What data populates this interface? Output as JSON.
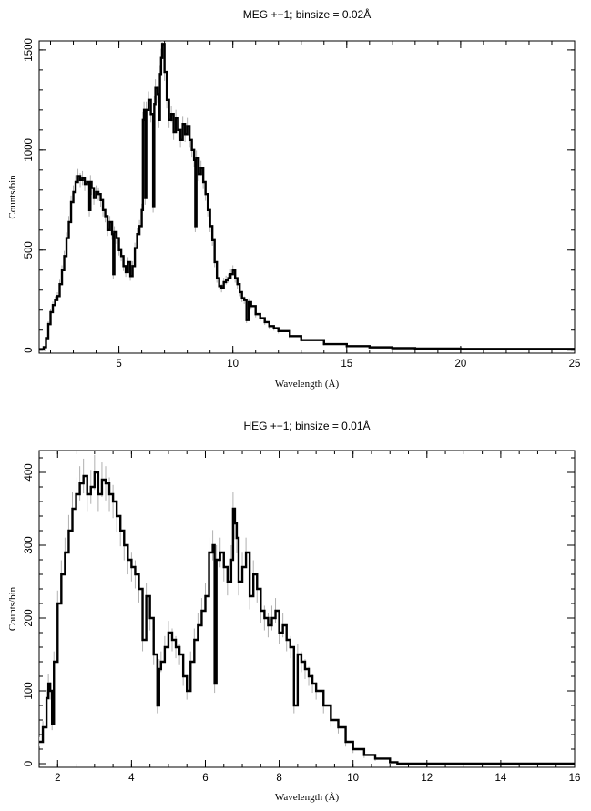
{
  "chart_data": [
    {
      "type": "line",
      "title": "MEG +−1; binsize = 0.02Å",
      "xlabel": "Wavelength (Å)",
      "ylabel": "Counts/bin",
      "xlim": [
        1.5,
        25
      ],
      "ylim": [
        -15,
        1545
      ],
      "xticks": [
        5,
        10,
        15,
        20,
        25
      ],
      "yticks": [
        0,
        500,
        1000,
        1500
      ],
      "grid": false,
      "series": [
        {
          "points": [
            [
              1.5,
              5
            ],
            [
              1.7,
              15
            ],
            [
              1.8,
              60
            ],
            [
              1.9,
              130
            ],
            [
              2.0,
              190
            ],
            [
              2.1,
              225
            ],
            [
              2.2,
              250
            ],
            [
              2.3,
              270
            ],
            [
              2.4,
              330
            ],
            [
              2.5,
              400
            ],
            [
              2.6,
              470
            ],
            [
              2.7,
              560
            ],
            [
              2.8,
              640
            ],
            [
              2.9,
              740
            ],
            [
              3.0,
              790
            ],
            [
              3.1,
              840
            ],
            [
              3.2,
              870
            ],
            [
              3.3,
              850
            ],
            [
              3.4,
              860
            ],
            [
              3.5,
              830
            ],
            [
              3.6,
              840
            ],
            [
              3.7,
              700
            ],
            [
              3.75,
              840
            ],
            [
              3.8,
              810
            ],
            [
              3.9,
              760
            ],
            [
              4.0,
              790
            ],
            [
              4.1,
              780
            ],
            [
              4.2,
              750
            ],
            [
              4.3,
              700
            ],
            [
              4.4,
              670
            ],
            [
              4.5,
              600
            ],
            [
              4.6,
              640
            ],
            [
              4.7,
              580
            ],
            [
              4.75,
              380
            ],
            [
              4.8,
              590
            ],
            [
              4.9,
              560
            ],
            [
              5.0,
              500
            ],
            [
              5.1,
              470
            ],
            [
              5.2,
              420
            ],
            [
              5.3,
              390
            ],
            [
              5.4,
              440
            ],
            [
              5.5,
              370
            ],
            [
              5.6,
              420
            ],
            [
              5.7,
              510
            ],
            [
              5.8,
              580
            ],
            [
              5.9,
              620
            ],
            [
              6.0,
              700
            ],
            [
              6.05,
              1150
            ],
            [
              6.1,
              1200
            ],
            [
              6.15,
              760
            ],
            [
              6.2,
              1200
            ],
            [
              6.3,
              1250
            ],
            [
              6.4,
              1180
            ],
            [
              6.5,
              720
            ],
            [
              6.55,
              1230
            ],
            [
              6.6,
              1310
            ],
            [
              6.7,
              1280
            ],
            [
              6.75,
              1150
            ],
            [
              6.8,
              1380
            ],
            [
              6.85,
              1460
            ],
            [
              6.9,
              1530
            ],
            [
              7.0,
              1390
            ],
            [
              7.1,
              1250
            ],
            [
              7.2,
              1150
            ],
            [
              7.3,
              1180
            ],
            [
              7.4,
              1090
            ],
            [
              7.5,
              1160
            ],
            [
              7.6,
              1100
            ],
            [
              7.7,
              1050
            ],
            [
              7.8,
              1130
            ],
            [
              7.9,
              1080
            ],
            [
              8.0,
              1120
            ],
            [
              8.1,
              1050
            ],
            [
              8.2,
              1000
            ],
            [
              8.3,
              950
            ],
            [
              8.35,
              620
            ],
            [
              8.4,
              960
            ],
            [
              8.5,
              880
            ],
            [
              8.6,
              910
            ],
            [
              8.7,
              840
            ],
            [
              8.8,
              780
            ],
            [
              8.9,
              700
            ],
            [
              9.0,
              620
            ],
            [
              9.1,
              550
            ],
            [
              9.2,
              440
            ],
            [
              9.3,
              360
            ],
            [
              9.4,
              320
            ],
            [
              9.5,
              310
            ],
            [
              9.6,
              340
            ],
            [
              9.7,
              350
            ],
            [
              9.8,
              360
            ],
            [
              9.9,
              380
            ],
            [
              10.0,
              400
            ],
            [
              10.1,
              360
            ],
            [
              10.2,
              330
            ],
            [
              10.3,
              290
            ],
            [
              10.4,
              260
            ],
            [
              10.5,
              250
            ],
            [
              10.6,
              150
            ],
            [
              10.7,
              240
            ],
            [
              10.8,
              220
            ],
            [
              11.0,
              180
            ],
            [
              11.2,
              160
            ],
            [
              11.4,
              140
            ],
            [
              11.6,
              120
            ],
            [
              11.8,
              110
            ],
            [
              12.0,
              95
            ],
            [
              12.5,
              70
            ],
            [
              13.0,
              50
            ],
            [
              14.0,
              30
            ],
            [
              15.0,
              20
            ],
            [
              16.0,
              14
            ],
            [
              17.0,
              10
            ],
            [
              18.0,
              8
            ],
            [
              20.0,
              6
            ],
            [
              25.0,
              5
            ]
          ]
        }
      ]
    },
    {
      "type": "line",
      "title": "HEG +−1; binsize = 0.01Å",
      "xlabel": "Wavelength (Å)",
      "ylabel": "Counts/bin",
      "xlim": [
        1.5,
        16
      ],
      "ylim": [
        -5,
        430
      ],
      "xticks": [
        2,
        4,
        6,
        8,
        10,
        12,
        14,
        16
      ],
      "yticks": [
        0,
        100,
        200,
        300,
        400
      ],
      "grid": false,
      "series": [
        {
          "points": [
            [
              1.5,
              30
            ],
            [
              1.6,
              50
            ],
            [
              1.7,
              90
            ],
            [
              1.75,
              110
            ],
            [
              1.8,
              100
            ],
            [
              1.85,
              55
            ],
            [
              1.9,
              140
            ],
            [
              2.0,
              220
            ],
            [
              2.1,
              260
            ],
            [
              2.2,
              290
            ],
            [
              2.3,
              320
            ],
            [
              2.4,
              350
            ],
            [
              2.5,
              370
            ],
            [
              2.6,
              385
            ],
            [
              2.7,
              395
            ],
            [
              2.8,
              370
            ],
            [
              2.9,
              380
            ],
            [
              3.0,
              400
            ],
            [
              3.1,
              370
            ],
            [
              3.2,
              390
            ],
            [
              3.3,
              385
            ],
            [
              3.4,
              370
            ],
            [
              3.5,
              360
            ],
            [
              3.6,
              340
            ],
            [
              3.7,
              320
            ],
            [
              3.8,
              300
            ],
            [
              3.9,
              280
            ],
            [
              4.0,
              270
            ],
            [
              4.1,
              260
            ],
            [
              4.2,
              240
            ],
            [
              4.3,
              170
            ],
            [
              4.4,
              230
            ],
            [
              4.5,
              200
            ],
            [
              4.6,
              150
            ],
            [
              4.7,
              80
            ],
            [
              4.75,
              130
            ],
            [
              4.8,
              140
            ],
            [
              4.9,
              160
            ],
            [
              5.0,
              180
            ],
            [
              5.1,
              170
            ],
            [
              5.2,
              160
            ],
            [
              5.3,
              150
            ],
            [
              5.4,
              120
            ],
            [
              5.5,
              100
            ],
            [
              5.6,
              140
            ],
            [
              5.7,
              170
            ],
            [
              5.8,
              190
            ],
            [
              5.9,
              210
            ],
            [
              6.0,
              230
            ],
            [
              6.1,
              290
            ],
            [
              6.2,
              300
            ],
            [
              6.25,
              110
            ],
            [
              6.3,
              280
            ],
            [
              6.4,
              290
            ],
            [
              6.5,
              270
            ],
            [
              6.6,
              250
            ],
            [
              6.7,
              280
            ],
            [
              6.75,
              350
            ],
            [
              6.8,
              330
            ],
            [
              6.85,
              310
            ],
            [
              6.9,
              250
            ],
            [
              7.0,
              270
            ],
            [
              7.1,
              290
            ],
            [
              7.2,
              230
            ],
            [
              7.3,
              260
            ],
            [
              7.4,
              240
            ],
            [
              7.5,
              210
            ],
            [
              7.6,
              200
            ],
            [
              7.7,
              190
            ],
            [
              7.8,
              200
            ],
            [
              7.9,
              210
            ],
            [
              8.0,
              180
            ],
            [
              8.1,
              190
            ],
            [
              8.2,
              170
            ],
            [
              8.3,
              160
            ],
            [
              8.4,
              80
            ],
            [
              8.5,
              150
            ],
            [
              8.6,
              140
            ],
            [
              8.7,
              130
            ],
            [
              8.8,
              120
            ],
            [
              8.9,
              110
            ],
            [
              9.0,
              100
            ],
            [
              9.2,
              80
            ],
            [
              9.4,
              60
            ],
            [
              9.6,
              50
            ],
            [
              9.8,
              30
            ],
            [
              10.0,
              20
            ],
            [
              10.3,
              12
            ],
            [
              10.6,
              7
            ],
            [
              11.0,
              2
            ],
            [
              11.2,
              0
            ],
            [
              16.0,
              0
            ]
          ]
        }
      ]
    }
  ]
}
